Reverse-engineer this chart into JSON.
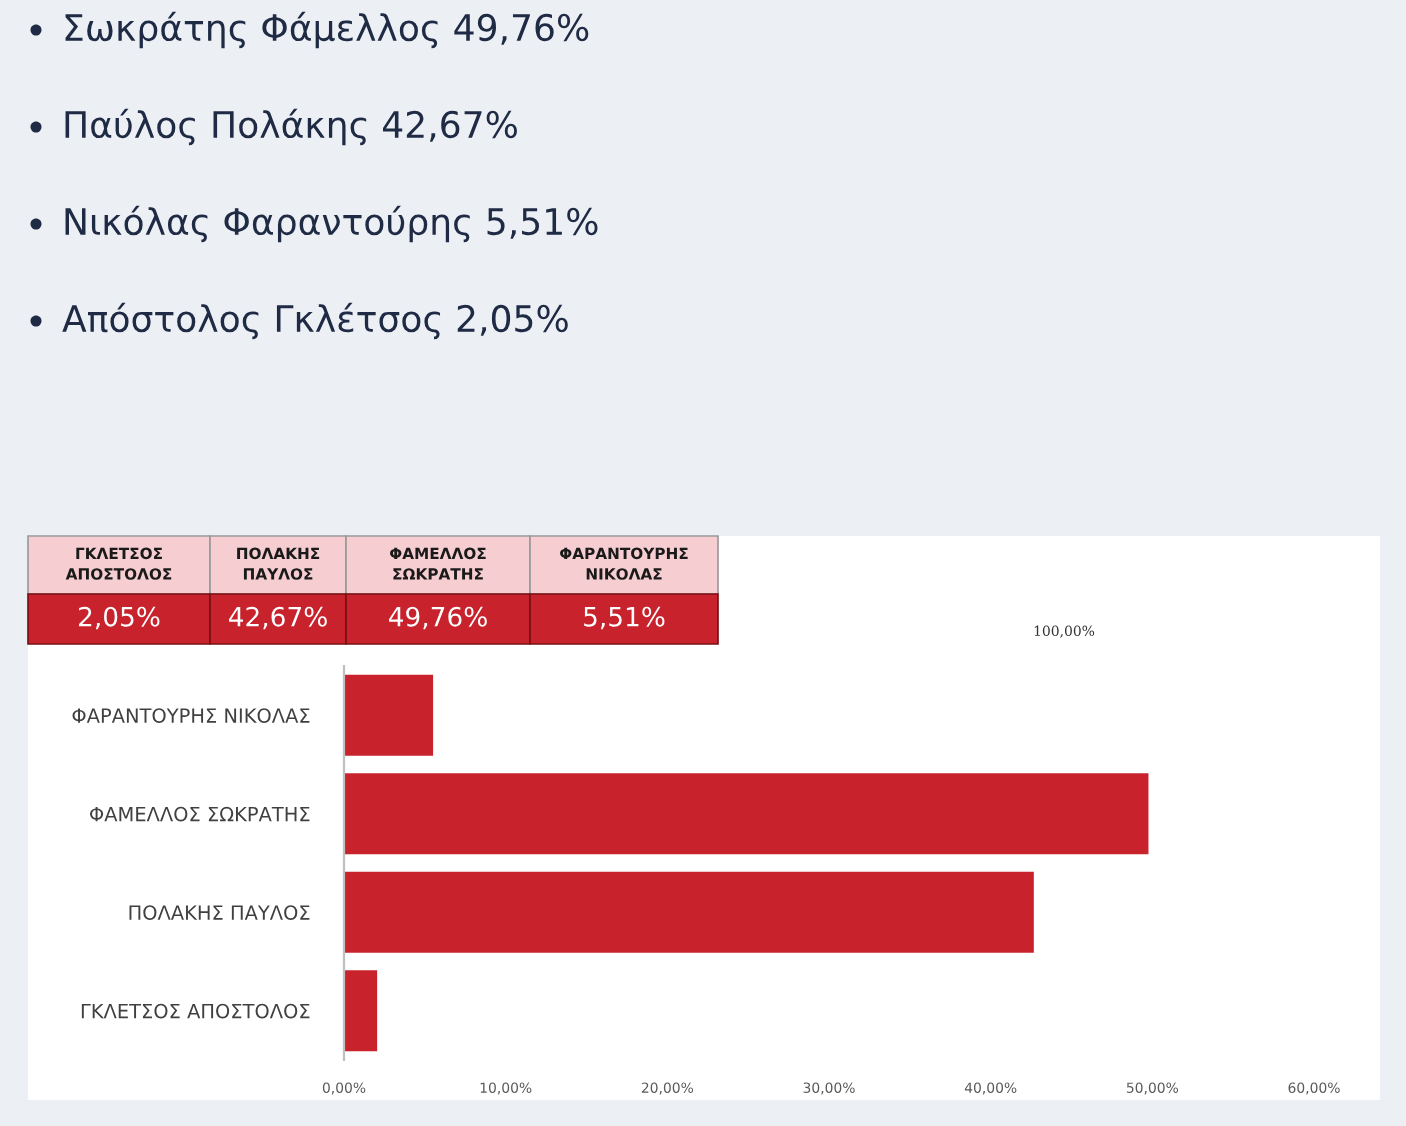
{
  "chart_data": {
    "type": "bar",
    "orientation": "horizontal",
    "categories": [
      "ΦΑΡΑΝΤΟΥΡΗΣ ΝΙΚΟΛΑΣ",
      "ΦΑΜΕΛΛΟΣ ΣΩΚΡΑΤΗΣ",
      "ΠΟΛΑΚΗΣ ΠΑΥΛΟΣ",
      "ΓΚΛΕΤΣΟΣ ΑΠΟΣΤΟΛΟΣ"
    ],
    "values": [
      5.51,
      49.76,
      42.67,
      2.05
    ],
    "color": "#c8232c",
    "xlim": [
      0,
      60
    ],
    "xticks": [
      {
        "value": 0,
        "label": "0,00%"
      },
      {
        "value": 10,
        "label": "10,00%"
      },
      {
        "value": 20,
        "label": "20,00%"
      },
      {
        "value": 30,
        "label": "30,00%"
      },
      {
        "value": 40,
        "label": "40,00%"
      },
      {
        "value": 50,
        "label": "50,00%"
      },
      {
        "value": 60,
        "label": "60,00%"
      }
    ],
    "grid": false,
    "annotations": [
      "Σωκράτης Φάμελλος 49,76%",
      "Παύλος Πολάκης 42,67%",
      "Νικόλας Φαραντούρης 5,51%",
      "Απόστολος Γκλέτσος 2,05%",
      "ΓΚΛΕΤΣΟΣ\nΑΠΟΣΤΟΛΟΣ",
      "ΠΟΛΑΚΗΣ\nΠΑΥΛΟΣ",
      "ΦΑΜΕΛΛΟΣ\nΣΩΚΡΑΤΗΣ",
      "ΦΑΡΑΝΤΟΥΡΗΣ\nΝΙΚΟΛΑΣ",
      "2,05%",
      "42,67%",
      "49,76%",
      "5,51%",
      "100,00%"
    ]
  }
}
